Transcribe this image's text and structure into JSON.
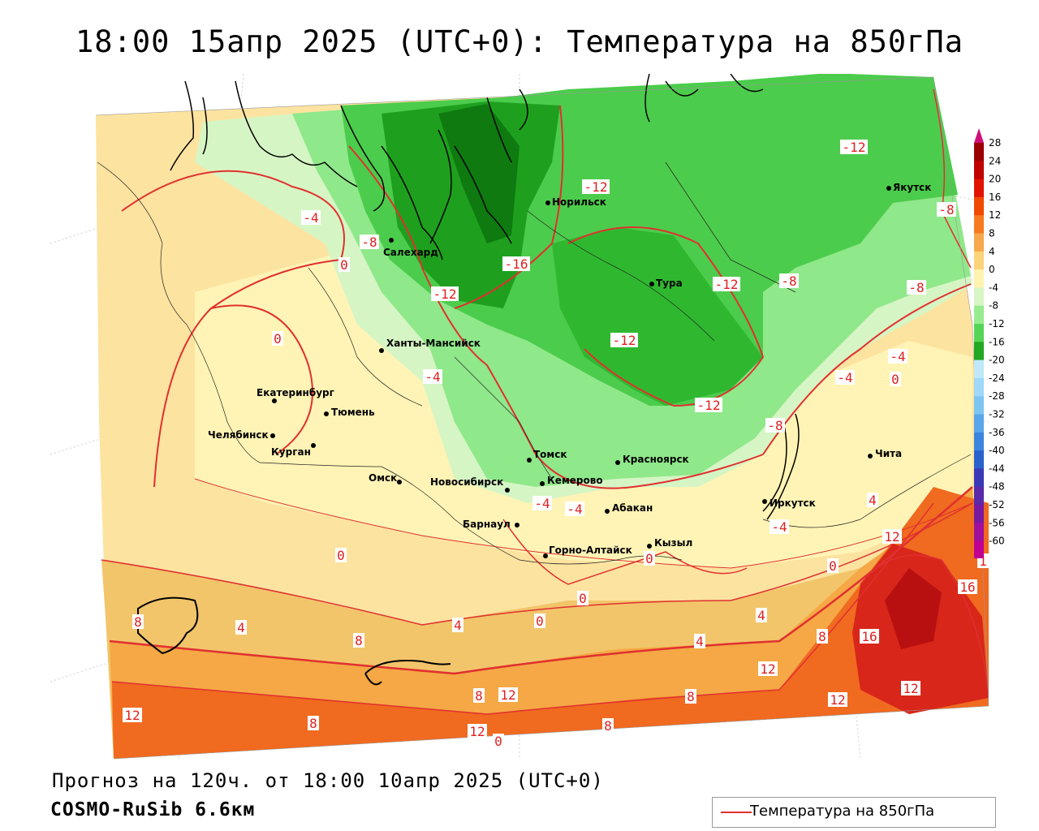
{
  "title": "18:00 15апр 2025 (UTC+0): Температура на 850гПа",
  "forecast_line": "Прогноз на 120ч. от 18:00 10апр 2025 (UTC+0)",
  "model_line": "COSMO-RuSib 6.6км",
  "legend": {
    "label": "Температура на 850гПа",
    "color": "#e03030"
  },
  "colors": {
    "warm_4": "#f2c56a",
    "warm_8": "#f5a845",
    "warm_12": "#f06a20",
    "warm_16": "#e5321a",
    "warm_0": "#fde3a0",
    "cool_0": "#fff4b5",
    "cool_4": "#d6f5c4",
    "cool_8": "#8fe88a",
    "cool_12": "#4ccc4c",
    "cool_16": "#1ea01e",
    "cool_20": "#0e7a10",
    "isoline": "#e03030"
  },
  "scale": {
    "values": [
      "28",
      "24",
      "20",
      "16",
      "12",
      "8",
      "4",
      "0",
      "-4",
      "-8",
      "-12",
      "-16",
      "-20",
      "-24",
      "-28",
      "-32",
      "-36",
      "-40",
      "-44",
      "-48",
      "-52",
      "-56",
      "-60"
    ],
    "colors": [
      "#9a0000",
      "#c10000",
      "#e01400",
      "#f04a00",
      "#f57a20",
      "#f7a84a",
      "#fbd37a",
      "#fff3b0",
      "#d8f5c6",
      "#98ec90",
      "#56d456",
      "#22a822",
      "#bfe8f8",
      "#9fd8f8",
      "#7ec4f2",
      "#5aa6ea",
      "#3a86de",
      "#2a62cc",
      "#3a3ab8",
      "#5a2aa8",
      "#7a1aa0",
      "#a0109a",
      "#c00090"
    ]
  },
  "cities": [
    {
      "name": "Норильск"
    },
    {
      "name": "Якутск"
    },
    {
      "name": "Салехард"
    },
    {
      "name": "Тура"
    },
    {
      "name": "Ханты-Мансийск"
    },
    {
      "name": "Екатеринбург"
    },
    {
      "name": "Тюмень"
    },
    {
      "name": "Челябинск"
    },
    {
      "name": "Курган"
    },
    {
      "name": "Омск"
    },
    {
      "name": "Новосибирск"
    },
    {
      "name": "Томск"
    },
    {
      "name": "Кемерово"
    },
    {
      "name": "Красноярск"
    },
    {
      "name": "Иркутск"
    },
    {
      "name": "Чита"
    },
    {
      "name": "Барнаул"
    },
    {
      "name": "Абакан"
    },
    {
      "name": "Горно-Алтайск"
    },
    {
      "name": "Кызыл"
    }
  ],
  "isoline_labels": [
    "-12",
    "-4",
    "-8",
    "0",
    "-16",
    "-12",
    "-12",
    "-8",
    "-8",
    "-12",
    "0",
    "-4",
    "-12",
    "-4",
    "-4",
    "0",
    "-8",
    "-12",
    "-8",
    "-4",
    "-4",
    "0",
    "-4",
    "0",
    "4",
    "12",
    "0",
    "1",
    "16",
    "8",
    "4",
    "4",
    "8",
    "0",
    "0",
    "4",
    "4",
    "8",
    "16",
    "12",
    "12",
    "12",
    "12",
    "8",
    "8",
    "12",
    "12",
    "8",
    "8",
    "0"
  ]
}
